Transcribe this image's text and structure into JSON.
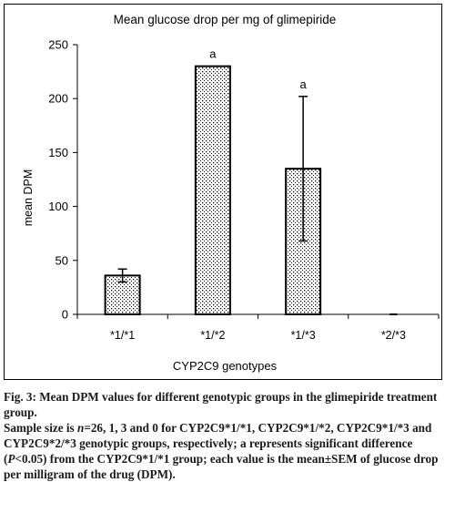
{
  "chart_data": {
    "type": "bar",
    "title": "Mean glucose drop per mg of glimepiride",
    "xlabel": "CYP2C9 genotypes",
    "ylabel": "mean DPM",
    "ylim": [
      0,
      250
    ],
    "yticks": [
      0,
      50,
      100,
      150,
      200,
      250
    ],
    "categories": [
      "*1/*1",
      "*1/*2",
      "*1/*3",
      "*2/*3"
    ],
    "values": [
      36,
      230,
      135,
      0
    ],
    "error": [
      6,
      0,
      67,
      0
    ],
    "annotations": [
      "",
      "a",
      "a",
      ""
    ],
    "bar_fill": "dotted",
    "grid": false,
    "legend": "none"
  },
  "caption": {
    "fig_label": "Fig. 3:",
    "line1_rest": " Mean DPM values for different genotypic groups in the glimepiride treatment group.",
    "line2_pre": "Sample size is ",
    "line2_n": "n",
    "line2_post": "=26, 1, 3 and 0 for CYP2C9*1/*1, CYP2C9*1/*2, CYP2C9*1/*3 and CYP2C9*2/*3 genotypic groups, respectively; a represents significant difference (",
    "line2_p": "P",
    "line2_end": "<0.05) from the CYP2C9*1/*1 group; each value is the mean±SEM of glucose drop per milligram of the drug (DPM)."
  }
}
